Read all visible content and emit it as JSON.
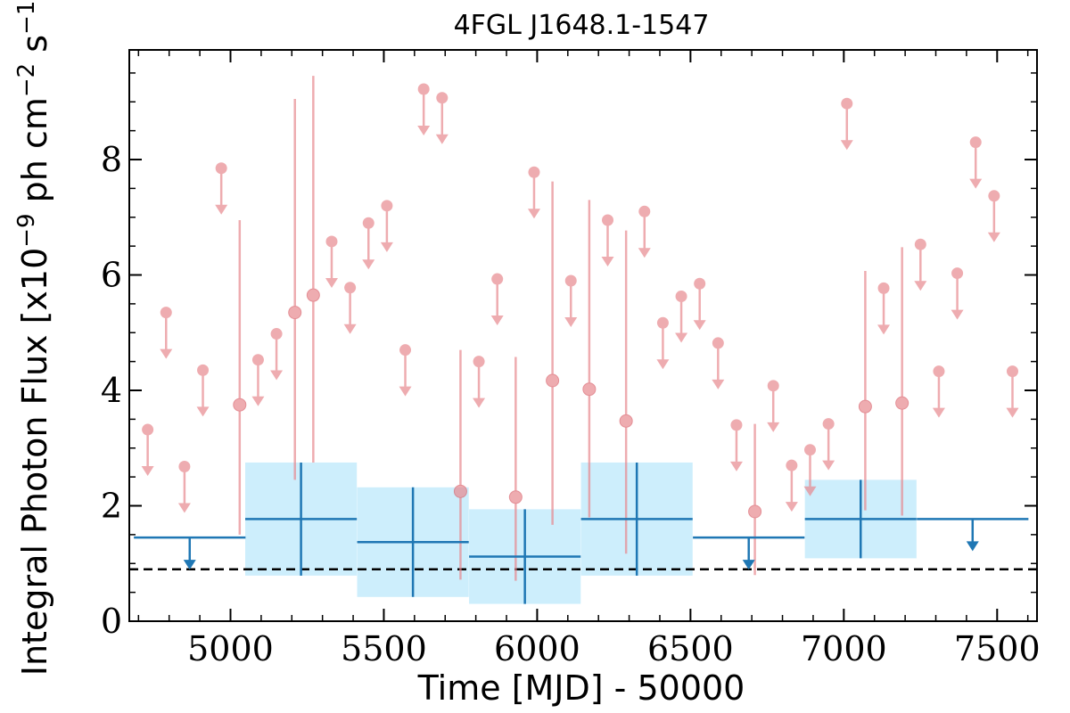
{
  "chart_data": {
    "type": "scatter",
    "title": "4FGL J1648.1-1547",
    "xlabel": "Time [MJD] - 50000",
    "ylabel_main": "Integral Photon Flux [x10",
    "ylabel_exp1": "−9",
    "ylabel_mid": " ph cm",
    "ylabel_exp2": "−2",
    "ylabel_mid2": " s",
    "ylabel_exp3": "−1",
    "ylabel_end": "]",
    "xlim": [
      4670,
      7630
    ],
    "ylim": [
      0,
      9.9
    ],
    "x_ticks": [
      5000,
      5500,
      6000,
      6500,
      7000,
      7500
    ],
    "x_tick_labels": [
      "5000",
      "5500",
      "6000",
      "6500",
      "7000",
      "7500"
    ],
    "y_ticks": [
      0,
      2,
      4,
      6,
      8
    ],
    "y_tick_labels": [
      "0",
      "2",
      "4",
      "6",
      "8"
    ],
    "grid": false,
    "colors": {
      "monthly": "#e8898f",
      "yearly": "#1f77b4",
      "band": "#cdeefc",
      "reference": "#000000"
    },
    "reference_line": {
      "y": 0.9,
      "style": "dashed"
    },
    "yearly_bins": [
      {
        "x": 4867,
        "halfwidth": 182,
        "y": 1.45,
        "upper_limit": true
      },
      {
        "x": 5230,
        "halfwidth": 182,
        "y": 1.77,
        "err": 0.98
      },
      {
        "x": 5595,
        "halfwidth": 182,
        "y": 1.37,
        "err": 0.95
      },
      {
        "x": 5960,
        "halfwidth": 182,
        "y": 1.12,
        "err": 0.82
      },
      {
        "x": 6325,
        "halfwidth": 182,
        "y": 1.77,
        "err": 0.98
      },
      {
        "x": 6690,
        "halfwidth": 182,
        "y": 1.45,
        "upper_limit": true
      },
      {
        "x": 7055,
        "halfwidth": 182,
        "y": 1.77,
        "err": 0.68
      },
      {
        "x": 7420,
        "halfwidth": 182,
        "y": 1.77,
        "upper_limit": true
      }
    ],
    "monthly_points": [
      {
        "x": 4730,
        "y": 3.32,
        "upper_limit": true
      },
      {
        "x": 4790,
        "y": 5.35,
        "upper_limit": true
      },
      {
        "x": 4850,
        "y": 2.68,
        "upper_limit": true
      },
      {
        "x": 4910,
        "y": 4.35,
        "upper_limit": true
      },
      {
        "x": 4970,
        "y": 7.85,
        "upper_limit": true
      },
      {
        "x": 5030,
        "y": 3.75,
        "err_low": 2.25,
        "err_high": 3.2
      },
      {
        "x": 5090,
        "y": 4.53,
        "upper_limit": true
      },
      {
        "x": 5150,
        "y": 4.98,
        "upper_limit": true
      },
      {
        "x": 5210,
        "y": 5.35,
        "err_low": 2.9,
        "err_high": 3.7
      },
      {
        "x": 5270,
        "y": 5.65,
        "err_low": 2.9,
        "err_high": 3.8
      },
      {
        "x": 5330,
        "y": 6.58,
        "upper_limit": true
      },
      {
        "x": 5390,
        "y": 5.78,
        "upper_limit": true
      },
      {
        "x": 5450,
        "y": 6.9,
        "upper_limit": true
      },
      {
        "x": 5510,
        "y": 7.2,
        "upper_limit": true
      },
      {
        "x": 5570,
        "y": 4.7,
        "upper_limit": true
      },
      {
        "x": 5630,
        "y": 9.22,
        "upper_limit": true
      },
      {
        "x": 5690,
        "y": 9.07,
        "upper_limit": true
      },
      {
        "x": 5750,
        "y": 2.25,
        "err_low": 1.53,
        "err_high": 2.45
      },
      {
        "x": 5810,
        "y": 4.5,
        "upper_limit": true
      },
      {
        "x": 5870,
        "y": 5.93,
        "upper_limit": true
      },
      {
        "x": 5930,
        "y": 2.15,
        "err_low": 1.45,
        "err_high": 2.43
      },
      {
        "x": 5990,
        "y": 7.78,
        "upper_limit": true
      },
      {
        "x": 6050,
        "y": 4.17,
        "err_low": 2.5,
        "err_high": 3.45
      },
      {
        "x": 6110,
        "y": 5.9,
        "upper_limit": true
      },
      {
        "x": 6170,
        "y": 4.02,
        "err_low": 2.22,
        "err_high": 3.28
      },
      {
        "x": 6230,
        "y": 6.95,
        "upper_limit": true
      },
      {
        "x": 6290,
        "y": 3.47,
        "err_low": 2.3,
        "err_high": 3.3
      },
      {
        "x": 6350,
        "y": 7.1,
        "upper_limit": true
      },
      {
        "x": 6410,
        "y": 5.17,
        "upper_limit": true
      },
      {
        "x": 6470,
        "y": 5.63,
        "upper_limit": true
      },
      {
        "x": 6530,
        "y": 5.85,
        "upper_limit": true
      },
      {
        "x": 6590,
        "y": 4.82,
        "upper_limit": true
      },
      {
        "x": 6650,
        "y": 3.4,
        "upper_limit": true
      },
      {
        "x": 6710,
        "y": 1.9,
        "err_low": 1.1,
        "err_high": 1.52
      },
      {
        "x": 6770,
        "y": 4.08,
        "upper_limit": true
      },
      {
        "x": 6830,
        "y": 2.7,
        "upper_limit": true
      },
      {
        "x": 6890,
        "y": 2.97,
        "upper_limit": true
      },
      {
        "x": 6950,
        "y": 3.42,
        "upper_limit": true
      },
      {
        "x": 7010,
        "y": 8.97,
        "upper_limit": true
      },
      {
        "x": 7070,
        "y": 3.72,
        "err_low": 1.8,
        "err_high": 2.35
      },
      {
        "x": 7130,
        "y": 5.77,
        "upper_limit": true
      },
      {
        "x": 7190,
        "y": 3.78,
        "err_low": 1.95,
        "err_high": 2.7
      },
      {
        "x": 7250,
        "y": 6.53,
        "upper_limit": true
      },
      {
        "x": 7310,
        "y": 4.33,
        "upper_limit": true
      },
      {
        "x": 7370,
        "y": 6.03,
        "upper_limit": true
      },
      {
        "x": 7430,
        "y": 8.3,
        "upper_limit": true
      },
      {
        "x": 7490,
        "y": 7.37,
        "upper_limit": true
      },
      {
        "x": 7550,
        "y": 4.33,
        "upper_limit": true
      }
    ]
  }
}
